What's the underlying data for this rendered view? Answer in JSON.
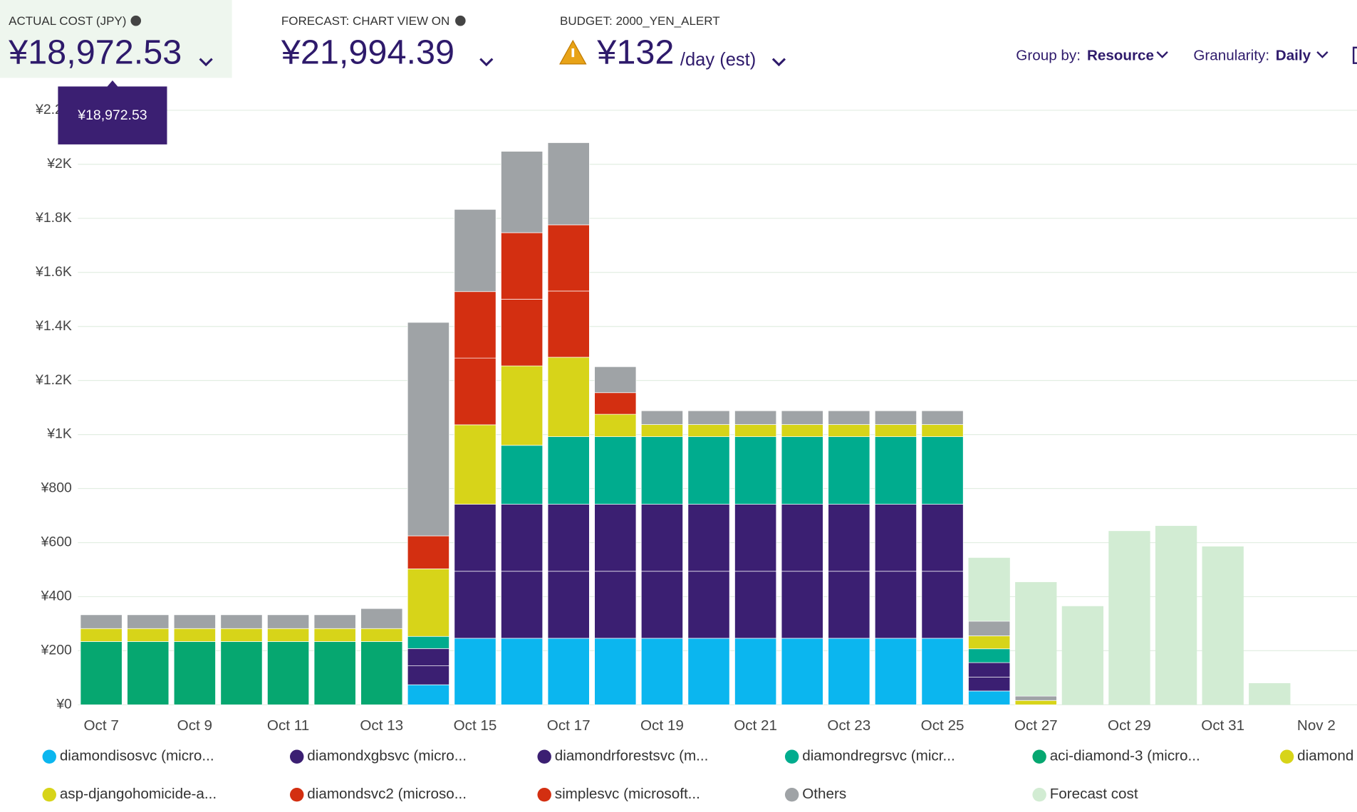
{
  "header": {
    "actual": {
      "label": "ACTUAL COST (JPY)",
      "value": "¥18,972.53"
    },
    "forecast": {
      "label": "FORECAST: CHART VIEW ON",
      "value": "¥21,994.39"
    },
    "budget": {
      "label": "BUDGET: 2000_YEN_ALERT",
      "value": "¥132",
      "unit": "/day (est)"
    },
    "group_by": {
      "label": "Group by:",
      "value": "Resource"
    },
    "granularity": {
      "label": "Granularity:",
      "value": "Daily"
    },
    "tooltip": "¥18,972.53"
  },
  "chart_data": {
    "type": "stacked_bar",
    "categories": [
      "Oct 7",
      null,
      "Oct 9",
      null,
      "Oct 11",
      null,
      "Oct 13",
      null,
      "Oct 15",
      null,
      "Oct 17",
      null,
      "Oct 19",
      null,
      "Oct 21",
      null,
      "Oct 23",
      null,
      "Oct 25",
      null,
      "Oct 27",
      null,
      "Oct 29",
      null,
      "Oct 31",
      null,
      "Nov 2"
    ],
    "ylim": [
      0,
      2200
    ],
    "yticks": [
      {
        "value": 0,
        "label": "¥0"
      },
      {
        "value": 200,
        "label": "¥200"
      },
      {
        "value": 400,
        "label": "¥400"
      },
      {
        "value": 600,
        "label": "¥600"
      },
      {
        "value": 800,
        "label": "¥800"
      },
      {
        "value": 1000,
        "label": "¥1K"
      },
      {
        "value": 1200,
        "label": "¥1.2K"
      },
      {
        "value": 1400,
        "label": "¥1.4K"
      },
      {
        "value": 1600,
        "label": "¥1.6K"
      },
      {
        "value": 1800,
        "label": "¥1.8K"
      },
      {
        "value": 2000,
        "label": "¥2K"
      },
      {
        "value": 2200,
        "label": "¥2.2K"
      }
    ],
    "grid": true,
    "series": [
      {
        "name": "diamondisosvc (micro...",
        "color": "#0bb6ef",
        "values": [
          null,
          null,
          null,
          null,
          null,
          null,
          null,
          74,
          246,
          246,
          246,
          246,
          246,
          246,
          246,
          246,
          246,
          246,
          246,
          51,
          null,
          null,
          null,
          null,
          null,
          null,
          null
        ]
      },
      {
        "name": "diamondxgbsvc (micro...",
        "color": "#3b1f72",
        "values": [
          null,
          null,
          null,
          null,
          null,
          null,
          null,
          70,
          248,
          248,
          248,
          248,
          248,
          248,
          248,
          248,
          248,
          248,
          248,
          51,
          null,
          null,
          null,
          null,
          null,
          null,
          null
        ]
      },
      {
        "name": "diamondrforestsvc (m...",
        "color": "#3b1f72",
        "values": [
          null,
          null,
          null,
          null,
          null,
          null,
          null,
          64,
          248,
          248,
          248,
          248,
          248,
          248,
          248,
          248,
          248,
          248,
          248,
          54,
          null,
          null,
          null,
          null,
          null,
          null,
          null
        ]
      },
      {
        "name": "diamondregrsvc (micr...",
        "color": "#00ac8e",
        "values": [
          null,
          null,
          null,
          null,
          null,
          null,
          null,
          45,
          null,
          218,
          250,
          250,
          250,
          250,
          250,
          250,
          250,
          250,
          250,
          51,
          null,
          null,
          null,
          null,
          null,
          null,
          null
        ]
      },
      {
        "name": "aci-diamond-3 (micro...",
        "color": "#06a770",
        "values": [
          234,
          234,
          234,
          234,
          234,
          234,
          234,
          null,
          null,
          null,
          null,
          null,
          null,
          null,
          null,
          null,
          null,
          null,
          null,
          null,
          null,
          null,
          null,
          null,
          null,
          null,
          null
        ]
      },
      {
        "name": "diamond",
        "color": "#d7d419",
        "values": [
          null,
          null,
          null,
          null,
          null,
          null,
          null,
          250,
          294,
          294,
          294,
          83,
          45,
          45,
          45,
          45,
          45,
          45,
          45,
          48,
          16,
          null,
          null,
          null,
          null,
          null,
          null
        ]
      },
      {
        "name": "asp-djangohomicide-a...",
        "color": "#d7d419",
        "values": [
          48,
          48,
          48,
          48,
          48,
          48,
          48,
          null,
          null,
          null,
          null,
          null,
          null,
          null,
          null,
          null,
          null,
          null,
          null,
          null,
          null,
          null,
          null,
          null,
          null,
          null,
          null
        ]
      },
      {
        "name": "diamondsvc2 (microso...",
        "color": "#d32f11",
        "values": [
          null,
          null,
          null,
          null,
          null,
          null,
          null,
          122,
          247,
          247,
          245,
          80,
          null,
          null,
          null,
          null,
          null,
          null,
          null,
          null,
          null,
          null,
          null,
          null,
          null,
          null,
          null
        ]
      },
      {
        "name": "simplesvc (microsoft...",
        "color": "#d32f11",
        "values": [
          null,
          null,
          null,
          null,
          null,
          null,
          null,
          null,
          246,
          246,
          245,
          null,
          null,
          null,
          null,
          null,
          null,
          null,
          null,
          null,
          null,
          null,
          null,
          null,
          null,
          null,
          null
        ]
      },
      {
        "name": "Others",
        "color": "#9fa3a6",
        "values": [
          51,
          51,
          51,
          51,
          51,
          51,
          74,
          790,
          304,
          301,
          304,
          96,
          51,
          51,
          51,
          51,
          51,
          51,
          51,
          54,
          16,
          null,
          null,
          null,
          null,
          null,
          null
        ]
      },
      {
        "name": "Forecast cost",
        "color": "#d2ecd3",
        "stacked": false,
        "values": [
          null,
          null,
          null,
          null,
          null,
          null,
          null,
          null,
          null,
          null,
          null,
          null,
          null,
          null,
          null,
          null,
          null,
          null,
          null,
          544,
          454,
          365,
          643,
          662,
          586,
          80,
          null
        ]
      }
    ]
  }
}
